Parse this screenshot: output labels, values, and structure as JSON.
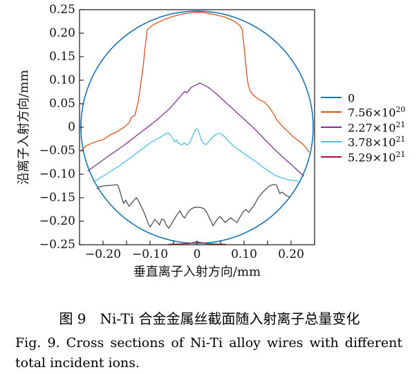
{
  "figure": {
    "caption_zh": "图 9　Ni-Ti 合金金属丝截面随入射离子总量变化",
    "caption_en_line1": "Fig. 9. Cross sections of Ni-Ti alloy wires with different",
    "caption_en_line2": "total incident ions."
  },
  "chart_data": {
    "type": "line",
    "title": "",
    "xlabel": "垂直离子入射方向/mm",
    "ylabel": "沿离子入射方向/mm",
    "xlim": [
      -0.25,
      0.25
    ],
    "ylim": [
      -0.25,
      0.25
    ],
    "grid": false,
    "legend_position": "right-outside",
    "axis_color": "#262626",
    "xticks_major": [
      -0.2,
      -0.1,
      0,
      0.1,
      0.2
    ],
    "xtick_labels": [
      "−0.20",
      "−0.10",
      "0",
      "0.10",
      "0.20"
    ],
    "xticks_minor": [
      -0.25,
      -0.15,
      -0.05,
      0.05,
      0.15,
      0.25
    ],
    "yticks": [
      0.25,
      0.2,
      0.15,
      0.1,
      0.05,
      0,
      -0.05,
      -0.1,
      -0.15,
      -0.2,
      -0.25
    ],
    "ytick_labels": [
      "0.25",
      "0.20",
      "0.15",
      "0.10",
      "0.05",
      "0",
      "−0.05",
      "−0.10",
      "−0.15",
      "−0.20",
      "−0.25"
    ],
    "series": [
      {
        "name": "0",
        "label_base": "0",
        "label_exp": "",
        "color": "#1574b4",
        "shape": "circle",
        "cx": 0,
        "cy": 0,
        "r": 0.247,
        "in_legend": true
      },
      {
        "name": "7.56e20",
        "label_base": "7.56×10",
        "label_exp": "20",
        "color": "#d95319",
        "in_legend": true,
        "points": [
          [
            -0.2455,
            -0.049
          ],
          [
            -0.238,
            -0.041
          ],
          [
            -0.224,
            -0.034
          ],
          [
            -0.21,
            -0.029
          ],
          [
            -0.199,
            -0.026
          ],
          [
            -0.184,
            -0.016
          ],
          [
            -0.169,
            -0.009
          ],
          [
            -0.154,
            0.001
          ],
          [
            -0.144,
            0.01
          ],
          [
            -0.14,
            0.021
          ],
          [
            -0.132,
            0.025
          ],
          [
            -0.128,
            0.043
          ],
          [
            -0.125,
            0.055
          ],
          [
            -0.122,
            0.075
          ],
          [
            -0.118,
            0.105
          ],
          [
            -0.114,
            0.135
          ],
          [
            -0.111,
            0.165
          ],
          [
            -0.108,
            0.19
          ],
          [
            -0.106,
            0.207
          ],
          [
            -0.096,
            0.216
          ],
          [
            -0.085,
            0.222
          ],
          [
            -0.07,
            0.229
          ],
          [
            -0.05,
            0.236
          ],
          [
            -0.03,
            0.241
          ],
          [
            -0.01,
            0.244
          ],
          [
            0.005,
            0.2445
          ],
          [
            0.02,
            0.243
          ],
          [
            0.04,
            0.239
          ],
          [
            0.06,
            0.234
          ],
          [
            0.08,
            0.225
          ],
          [
            0.092,
            0.215
          ],
          [
            0.096,
            0.207
          ],
          [
            0.099,
            0.18
          ],
          [
            0.102,
            0.15
          ],
          [
            0.105,
            0.12
          ],
          [
            0.108,
            0.095
          ],
          [
            0.112,
            0.078
          ],
          [
            0.12,
            0.068
          ],
          [
            0.13,
            0.06
          ],
          [
            0.144,
            0.053
          ],
          [
            0.155,
            0.04
          ],
          [
            0.165,
            0.025
          ],
          [
            0.169,
            0.016
          ],
          [
            0.177,
            0.007
          ],
          [
            0.184,
            -0.001
          ],
          [
            0.194,
            -0.01
          ],
          [
            0.203,
            -0.019
          ],
          [
            0.213,
            -0.027
          ],
          [
            0.224,
            -0.035
          ],
          [
            0.232,
            -0.044
          ],
          [
            0.238,
            -0.053
          ]
        ]
      },
      {
        "name": "2.27e21",
        "label_base": "2.27×10",
        "label_exp": "21",
        "color": "#7e2f8e",
        "in_legend": true,
        "points": [
          [
            -0.232,
            -0.093
          ],
          [
            -0.22,
            -0.084
          ],
          [
            -0.207,
            -0.075
          ],
          [
            -0.195,
            -0.066
          ],
          [
            -0.182,
            -0.057
          ],
          [
            -0.169,
            -0.048
          ],
          [
            -0.156,
            -0.039
          ],
          [
            -0.143,
            -0.029
          ],
          [
            -0.13,
            -0.019
          ],
          [
            -0.117,
            -0.009
          ],
          [
            -0.104,
            0.001
          ],
          [
            -0.091,
            0.011
          ],
          [
            -0.079,
            0.021
          ],
          [
            -0.068,
            0.031
          ],
          [
            -0.058,
            0.04
          ],
          [
            -0.05,
            0.049
          ],
          [
            -0.043,
            0.057
          ],
          [
            -0.037,
            0.064
          ],
          [
            -0.031,
            0.071
          ],
          [
            -0.026,
            0.076
          ],
          [
            -0.022,
            0.073
          ],
          [
            -0.017,
            0.079
          ],
          [
            -0.012,
            0.085
          ],
          [
            -0.006,
            0.088
          ],
          [
            0.0,
            0.091
          ],
          [
            0.006,
            0.094
          ],
          [
            0.012,
            0.091
          ],
          [
            0.018,
            0.088
          ],
          [
            0.025,
            0.084
          ],
          [
            0.033,
            0.078
          ],
          [
            0.042,
            0.07
          ],
          [
            0.052,
            0.061
          ],
          [
            0.063,
            0.051
          ],
          [
            0.075,
            0.04
          ],
          [
            0.088,
            0.028
          ],
          [
            0.1,
            0.017
          ],
          [
            0.112,
            0.006
          ],
          [
            0.125,
            -0.006
          ],
          [
            0.14,
            -0.022
          ],
          [
            0.155,
            -0.037
          ],
          [
            0.17,
            -0.052
          ],
          [
            0.185,
            -0.066
          ],
          [
            0.2,
            -0.079
          ],
          [
            0.214,
            -0.092
          ],
          [
            0.227,
            -0.104
          ]
        ]
      },
      {
        "name": "3.78e21",
        "label_base": "3.78×10",
        "label_exp": "21",
        "color": "#4dbeee",
        "in_legend": true,
        "points": [
          [
            -0.221,
            -0.117
          ],
          [
            -0.21,
            -0.11
          ],
          [
            -0.196,
            -0.102
          ],
          [
            -0.182,
            -0.093
          ],
          [
            -0.168,
            -0.084
          ],
          [
            -0.154,
            -0.074
          ],
          [
            -0.14,
            -0.064
          ],
          [
            -0.126,
            -0.053
          ],
          [
            -0.112,
            -0.043
          ],
          [
            -0.099,
            -0.033
          ],
          [
            -0.087,
            -0.026
          ],
          [
            -0.076,
            -0.02
          ],
          [
            -0.067,
            -0.014
          ],
          [
            -0.061,
            -0.012
          ],
          [
            -0.054,
            -0.02
          ],
          [
            -0.048,
            -0.031
          ],
          [
            -0.044,
            -0.027
          ],
          [
            -0.04,
            -0.033
          ],
          [
            -0.033,
            -0.038
          ],
          [
            -0.027,
            -0.033
          ],
          [
            -0.021,
            -0.038
          ],
          [
            -0.015,
            -0.032
          ],
          [
            -0.008,
            -0.015
          ],
          [
            -0.002,
            -0.003
          ],
          [
            0.002,
            -0.006
          ],
          [
            0.005,
            -0.014
          ],
          [
            0.009,
            -0.026
          ],
          [
            0.013,
            -0.034
          ],
          [
            0.019,
            -0.037
          ],
          [
            0.026,
            -0.03
          ],
          [
            0.033,
            -0.021
          ],
          [
            0.041,
            -0.015
          ],
          [
            0.049,
            -0.013
          ],
          [
            0.056,
            -0.018
          ],
          [
            0.063,
            -0.025
          ],
          [
            0.071,
            -0.034
          ],
          [
            0.08,
            -0.042
          ],
          [
            0.09,
            -0.049
          ],
          [
            0.101,
            -0.057
          ],
          [
            0.113,
            -0.065
          ],
          [
            0.126,
            -0.074
          ],
          [
            0.139,
            -0.084
          ],
          [
            0.153,
            -0.094
          ],
          [
            0.167,
            -0.103
          ],
          [
            0.181,
            -0.108
          ],
          [
            0.195,
            -0.112
          ],
          [
            0.209,
            -0.114
          ],
          [
            0.2215,
            -0.116
          ]
        ]
      },
      {
        "name": "5.29e21",
        "label_base": "5.29×10",
        "label_exp": "21",
        "color": "#a2142f",
        "in_legend": true,
        "points": [
          [
            -0.06,
            -0.249
          ],
          [
            -0.04,
            -0.2485
          ],
          [
            -0.025,
            -0.248
          ],
          [
            -0.015,
            -0.247
          ],
          [
            -0.008,
            -0.2455
          ],
          [
            -0.003,
            -0.2442
          ],
          [
            0.0,
            -0.2435
          ],
          [
            0.003,
            -0.2442
          ],
          [
            0.008,
            -0.2455
          ],
          [
            0.015,
            -0.247
          ],
          [
            0.025,
            -0.248
          ],
          [
            0.04,
            -0.2485
          ],
          [
            0.06,
            -0.249
          ]
        ]
      },
      {
        "name": "unlabeled-gray",
        "label_base": "",
        "label_exp": "",
        "color": "#4d4d4d",
        "in_legend": false,
        "points": [
          [
            -0.213,
            -0.131
          ],
          [
            -0.208,
            -0.127
          ],
          [
            -0.2,
            -0.125
          ],
          [
            -0.19,
            -0.124
          ],
          [
            -0.18,
            -0.1235
          ],
          [
            -0.172,
            -0.122
          ],
          [
            -0.168,
            -0.124
          ],
          [
            -0.163,
            -0.14
          ],
          [
            -0.159,
            -0.155
          ],
          [
            -0.156,
            -0.162
          ],
          [
            -0.152,
            -0.155
          ],
          [
            -0.148,
            -0.162
          ],
          [
            -0.145,
            -0.168
          ],
          [
            -0.14,
            -0.163
          ],
          [
            -0.134,
            -0.155
          ],
          [
            -0.129,
            -0.15
          ],
          [
            -0.124,
            -0.158
          ],
          [
            -0.118,
            -0.17
          ],
          [
            -0.112,
            -0.183
          ],
          [
            -0.107,
            -0.196
          ],
          [
            -0.103,
            -0.207
          ],
          [
            -0.1,
            -0.212
          ],
          [
            -0.095,
            -0.205
          ],
          [
            -0.09,
            -0.196
          ],
          [
            -0.085,
            -0.201
          ],
          [
            -0.08,
            -0.208
          ],
          [
            -0.075,
            -0.195
          ],
          [
            -0.07,
            -0.198
          ],
          [
            -0.065,
            -0.209
          ],
          [
            -0.06,
            -0.215
          ],
          [
            -0.054,
            -0.205
          ],
          [
            -0.048,
            -0.195
          ],
          [
            -0.042,
            -0.185
          ],
          [
            -0.036,
            -0.178
          ],
          [
            -0.03,
            -0.19
          ],
          [
            -0.026,
            -0.193
          ],
          [
            -0.02,
            -0.182
          ],
          [
            -0.014,
            -0.175
          ],
          [
            -0.007,
            -0.171
          ],
          [
            0.0,
            -0.17
          ],
          [
            0.008,
            -0.171
          ],
          [
            0.014,
            -0.173
          ],
          [
            0.02,
            -0.18
          ],
          [
            0.026,
            -0.193
          ],
          [
            0.031,
            -0.202
          ],
          [
            0.034,
            -0.21
          ],
          [
            0.04,
            -0.2
          ],
          [
            0.046,
            -0.192
          ],
          [
            0.049,
            -0.19
          ],
          [
            0.054,
            -0.196
          ],
          [
            0.06,
            -0.203
          ],
          [
            0.066,
            -0.197
          ],
          [
            0.072,
            -0.193
          ],
          [
            0.078,
            -0.198
          ],
          [
            0.085,
            -0.203
          ],
          [
            0.092,
            -0.19
          ],
          [
            0.098,
            -0.18
          ],
          [
            0.104,
            -0.175
          ],
          [
            0.11,
            -0.181
          ],
          [
            0.116,
            -0.173
          ],
          [
            0.122,
            -0.165
          ],
          [
            0.13,
            -0.15
          ],
          [
            0.138,
            -0.14
          ],
          [
            0.146,
            -0.132
          ],
          [
            0.154,
            -0.125
          ],
          [
            0.162,
            -0.122
          ],
          [
            0.169,
            -0.123
          ],
          [
            0.173,
            -0.133
          ],
          [
            0.176,
            -0.141
          ],
          [
            0.181,
            -0.138
          ],
          [
            0.186,
            -0.143
          ],
          [
            0.191,
            -0.146
          ],
          [
            0.198,
            -0.149
          ]
        ]
      }
    ]
  }
}
